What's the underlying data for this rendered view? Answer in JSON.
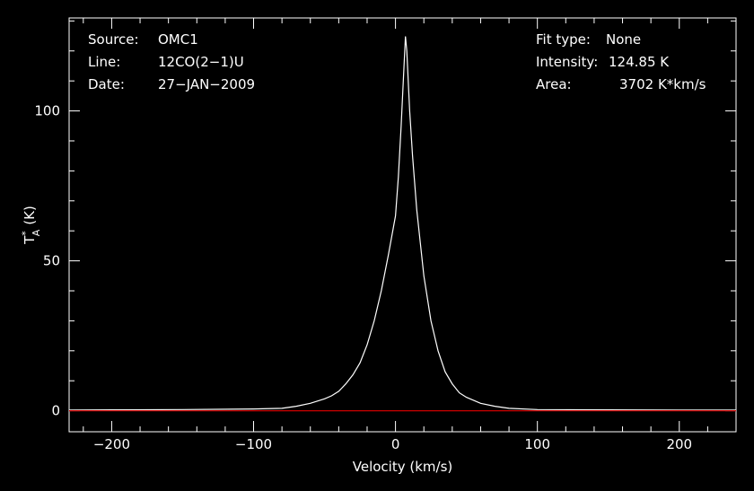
{
  "chart_data": {
    "type": "line",
    "title": "",
    "xlabel": "Velocity (km/s)",
    "ylabel_main": "T",
    "ylabel_sup": "*",
    "ylabel_sub": "A",
    "ylabel_unit": "(K)",
    "xlim": [
      -230,
      240
    ],
    "ylim": [
      -7,
      131
    ],
    "x_ticks": [
      -200,
      -100,
      0,
      100,
      200
    ],
    "x_tick_labels": [
      "−200",
      "−100",
      "0",
      "100",
      "200"
    ],
    "y_ticks": [
      0,
      50,
      100
    ],
    "y_tick_labels": [
      "0",
      "50",
      "100"
    ],
    "grid": false,
    "series": [
      {
        "color": "#ffffff",
        "x": [
          -230,
          -200,
          -150,
          -100,
          -80,
          -70,
          -60,
          -50,
          -45,
          -40,
          -35,
          -30,
          -25,
          -20,
          -15,
          -10,
          -5,
          0,
          2,
          4,
          6,
          7,
          8,
          10,
          12,
          15,
          20,
          25,
          30,
          35,
          40,
          45,
          50,
          60,
          70,
          80,
          100,
          150,
          200,
          240
        ],
        "y": [
          0.2,
          0.3,
          0.4,
          0.6,
          0.8,
          1.5,
          2.5,
          4,
          5,
          6.5,
          9,
          12,
          16,
          22,
          30,
          40,
          52,
          65,
          78,
          95,
          115,
          124.85,
          120,
          100,
          85,
          67,
          45,
          30,
          20,
          13,
          9,
          6,
          4.5,
          2.5,
          1.5,
          0.8,
          0.4,
          0.3,
          0.2,
          0.2
        ]
      },
      {
        "color": "#cc0000",
        "x": [
          -230,
          240
        ],
        "y": [
          0,
          0
        ]
      }
    ],
    "annotations": {
      "source_label": "Source:",
      "source_value": "OMC1",
      "line_label": "Line:",
      "line_value": "12CO(2−1)U",
      "date_label": "Date:",
      "date_value": "27−JAN−2009",
      "fit_label": "Fit type:",
      "fit_value": "None",
      "intensity_label": "Intensity:",
      "intensity_value": "124.85 K",
      "area_label": "Area:",
      "area_value": "3702 K*km/s"
    }
  }
}
